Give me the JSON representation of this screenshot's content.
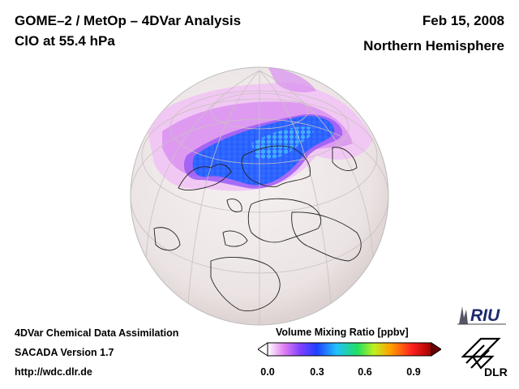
{
  "header": {
    "title": "GOME–2 / MetOp – 4DVar Analysis",
    "subtitle": "ClO at 55.4 hPa",
    "date": "Feb 15, 2008",
    "region": "Northern Hemisphere"
  },
  "footer": {
    "line1": "4DVar Chemical Data Assimilation",
    "line2": "SACADA Version 1.7",
    "url": "http://wdc.dlr.de"
  },
  "colorbar": {
    "title": "Volume Mixing Ratio [ppbv]",
    "ticks": [
      "0.0",
      "0.3",
      "0.6",
      "0.9"
    ],
    "range": [
      0.0,
      1.0
    ],
    "colors": [
      "#ffffff",
      "#e080f0",
      "#8040ff",
      "#2040ff",
      "#20c0ff",
      "#20e060",
      "#c0f020",
      "#ffa000",
      "#ff2020",
      "#a00000"
    ]
  },
  "logos": {
    "riu": "RIU",
    "dlr": "DLR"
  }
}
